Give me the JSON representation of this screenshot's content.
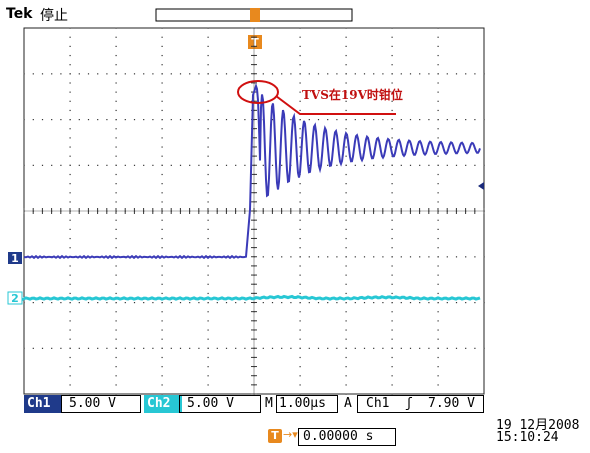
{
  "header": {
    "brand": "Tek",
    "state": "停止"
  },
  "annotation": {
    "text": "TVS在19V时钳位",
    "color": "#c01010"
  },
  "channels": [
    {
      "marker": "1",
      "color": "#3b3bb8"
    },
    {
      "marker": "2",
      "color": "#27c7d4"
    }
  ],
  "trigger_marker": "T",
  "statusbar": {
    "ch1_label": "Ch1",
    "ch1_scale": "5.00 V",
    "ch2_label": "Ch2",
    "ch2_scale": "5.00 V",
    "m_label": "M",
    "timebase": "1.00µs",
    "a_label": "A",
    "trig_source": "Ch1",
    "trig_slope": "ʃ",
    "trig_level": "7.90 V"
  },
  "trigger_position": {
    "icon": "T",
    "arrow": "→▾",
    "value": "0.00000 s"
  },
  "datetime": {
    "date": "19 12月2008",
    "time": "15:10:24"
  },
  "colors": {
    "accent": "#e8891e",
    "grid": "#222222",
    "label_bg": "#1f3a8a"
  }
}
